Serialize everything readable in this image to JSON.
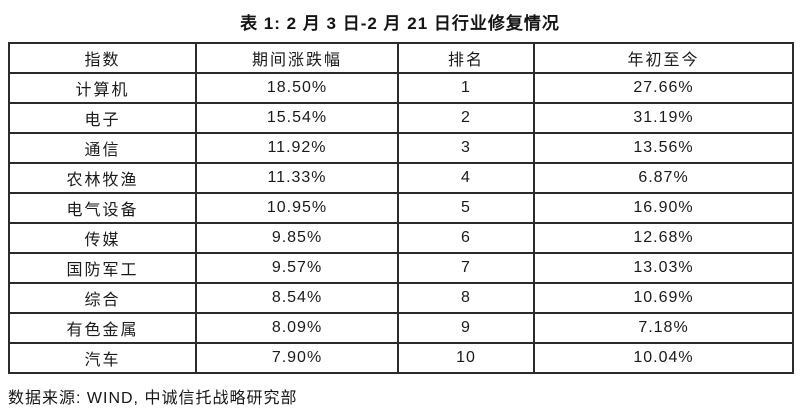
{
  "title": "表 1: 2 月 3 日-2 月 21 日行业修复情况",
  "table": {
    "columns": [
      "指数",
      "期间涨跌幅",
      "排名",
      "年初至今"
    ],
    "rows": [
      [
        "计算机",
        "18.50%",
        "1",
        "27.66%"
      ],
      [
        "电子",
        "15.54%",
        "2",
        "31.19%"
      ],
      [
        "通信",
        "11.92%",
        "3",
        "13.56%"
      ],
      [
        "农林牧渔",
        "11.33%",
        "4",
        "6.87%"
      ],
      [
        "电气设备",
        "10.95%",
        "5",
        "16.90%"
      ],
      [
        "传媒",
        "9.85%",
        "6",
        "12.68%"
      ],
      [
        "国防军工",
        "9.57%",
        "7",
        "13.03%"
      ],
      [
        "综合",
        "8.54%",
        "8",
        "10.69%"
      ],
      [
        "有色金属",
        "8.09%",
        "9",
        "7.18%"
      ],
      [
        "汽车",
        "7.90%",
        "10",
        "10.04%"
      ]
    ]
  },
  "footer": "数据来源: WIND, 中诚信托战略研究部",
  "colors": {
    "text": "#1a1a1a",
    "border": "#2b2b2b",
    "background": "#ffffff"
  }
}
